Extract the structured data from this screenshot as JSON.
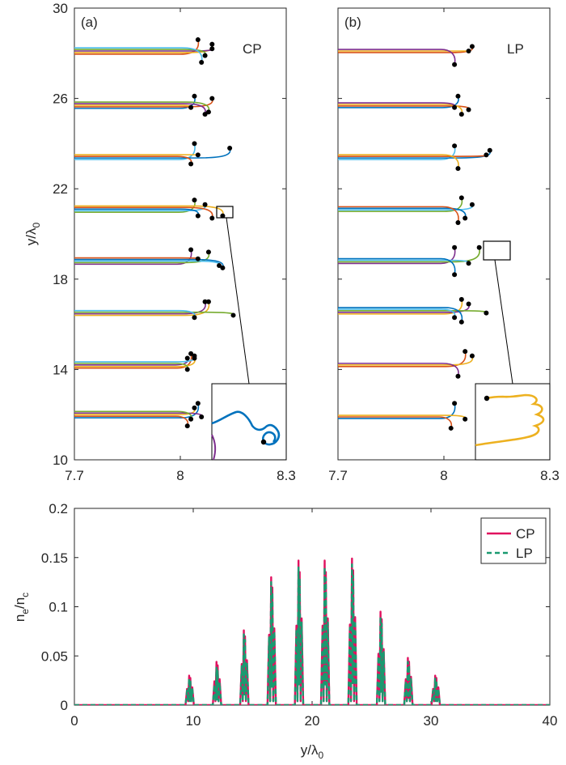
{
  "chart_data": [
    {
      "panel_label": "(a)",
      "type": "line",
      "annotation": "CP",
      "ylabel": "y/λ0",
      "xlim": [
        7.7,
        8.3
      ],
      "ylim": [
        10,
        30
      ],
      "xticks": [
        "7.7",
        "8",
        "8.3"
      ],
      "yticks": [
        "10",
        "14",
        "18",
        "22",
        "26",
        "30"
      ],
      "series_colors": [
        "#0072BD",
        "#D95319",
        "#EDB120",
        "#7E2F8E",
        "#77AC30",
        "#4DBEEE"
      ],
      "trajectory_groups": [
        {
          "y": 12.0,
          "ends": [
            [
              8.05,
              12.5
            ],
            [
              8.02,
              11.5
            ],
            [
              8.04,
              12.3
            ],
            [
              8.06,
              11.9
            ],
            [
              8.03,
              11.8
            ]
          ]
        },
        {
          "y": 14.2,
          "ends": [
            [
              8.03,
              14.7
            ],
            [
              8.04,
              14.5
            ],
            [
              8.02,
              14.5
            ],
            [
              8.02,
              14.0
            ],
            [
              8.04,
              14.6
            ]
          ]
        },
        {
          "y": 16.5,
          "ends": [
            [
              8.08,
              17.0
            ],
            [
              8.07,
              17.0
            ],
            [
              8.15,
              16.4
            ],
            [
              8.04,
              16.3
            ]
          ]
        },
        {
          "y": 18.8,
          "ends": [
            [
              8.03,
              19.3
            ],
            [
              8.08,
              19.2
            ],
            [
              8.11,
              18.6
            ],
            [
              8.12,
              18.5
            ],
            [
              8.05,
              18.9
            ]
          ]
        },
        {
          "y": 21.1,
          "ends": [
            [
              8.04,
              21.5
            ],
            [
              8.07,
              21.3
            ],
            [
              8.05,
              20.8
            ],
            [
              8.09,
              20.7
            ],
            [
              8.12,
              20.8
            ]
          ]
        },
        {
          "y": 23.4,
          "ends": [
            [
              8.04,
              24.0
            ],
            [
              8.14,
              23.8
            ],
            [
              8.03,
              23.1
            ],
            [
              8.05,
              23.5
            ]
          ]
        },
        {
          "y": 25.7,
          "ends": [
            [
              8.04,
              26.1
            ],
            [
              8.09,
              26.0
            ],
            [
              8.03,
              25.6
            ],
            [
              8.07,
              25.3
            ],
            [
              8.08,
              25.4
            ]
          ]
        },
        {
          "y": 28.1,
          "ends": [
            [
              8.05,
              28.6
            ],
            [
              8.09,
              28.4
            ],
            [
              8.09,
              28.2
            ],
            [
              8.07,
              27.9
            ],
            [
              8.06,
              27.6
            ]
          ]
        }
      ]
    },
    {
      "panel_label": "(b)",
      "type": "line",
      "annotation": "LP",
      "xlim": [
        7.7,
        8.3
      ],
      "ylim": [
        10,
        30
      ],
      "xticks": [
        "7.7",
        "8",
        "8.3"
      ],
      "series_colors": [
        "#0072BD",
        "#D95319",
        "#EDB120",
        "#7E2F8E",
        "#77AC30",
        "#4DBEEE"
      ],
      "trajectory_groups": [
        {
          "y": 11.9,
          "ends": [
            [
              8.03,
              12.5
            ],
            [
              8.02,
              11.4
            ],
            [
              8.06,
              11.8
            ]
          ]
        },
        {
          "y": 14.2,
          "ends": [
            [
              8.06,
              14.8
            ],
            [
              8.08,
              14.6
            ],
            [
              8.04,
              13.7
            ]
          ]
        },
        {
          "y": 16.6,
          "ends": [
            [
              8.05,
              17.1
            ],
            [
              8.07,
              16.9
            ],
            [
              8.12,
              16.5
            ],
            [
              8.03,
              16.3
            ],
            [
              8.05,
              16.1
            ]
          ]
        },
        {
          "y": 18.8,
          "ends": [
            [
              8.03,
              19.4
            ],
            [
              8.1,
              19.4
            ],
            [
              8.07,
              18.7
            ],
            [
              8.03,
              18.2
            ]
          ]
        },
        {
          "y": 21.1,
          "ends": [
            [
              8.05,
              21.6
            ],
            [
              8.08,
              21.3
            ],
            [
              8.06,
              20.7
            ],
            [
              8.04,
              20.5
            ]
          ]
        },
        {
          "y": 23.4,
          "ends": [
            [
              8.03,
              23.9
            ],
            [
              8.13,
              23.7
            ],
            [
              8.12,
              23.5
            ],
            [
              8.04,
              22.9
            ]
          ]
        },
        {
          "y": 25.7,
          "ends": [
            [
              8.04,
              26.1
            ],
            [
              8.07,
              25.5
            ],
            [
              8.05,
              25.3
            ],
            [
              8.03,
              25.6
            ]
          ]
        },
        {
          "y": 28.1,
          "ends": [
            [
              8.08,
              28.3
            ],
            [
              8.07,
              28.1
            ],
            [
              8.03,
              27.5
            ]
          ]
        }
      ]
    },
    {
      "type": "line",
      "xlabel": "y/λ0",
      "ylabel": "ne/nc",
      "xlim": [
        0,
        40
      ],
      "ylim": [
        0,
        0.2
      ],
      "xticks": [
        "0",
        "10",
        "20",
        "30",
        "40"
      ],
      "yticks": [
        "0",
        "0.05",
        "0.1",
        "0.15",
        "0.2"
      ],
      "legend_position": "top-right",
      "series": [
        {
          "name": "CP",
          "color": "#E0115F",
          "style": "solid",
          "peaks": [
            [
              9.7,
              0.03
            ],
            [
              12.0,
              0.044
            ],
            [
              14.3,
              0.076
            ],
            [
              16.6,
              0.13
            ],
            [
              18.9,
              0.147
            ],
            [
              21.1,
              0.147
            ],
            [
              23.4,
              0.149
            ],
            [
              25.8,
              0.095
            ],
            [
              28.1,
              0.048
            ],
            [
              30.4,
              0.03
            ]
          ]
        },
        {
          "name": "LP",
          "color": "#1A9A70",
          "style": "dashed",
          "peaks": [
            [
              9.7,
              0.027
            ],
            [
              12.0,
              0.038
            ],
            [
              14.3,
              0.072
            ],
            [
              16.6,
              0.125
            ],
            [
              18.9,
              0.14
            ],
            [
              21.1,
              0.14
            ],
            [
              23.4,
              0.143
            ],
            [
              25.8,
              0.09
            ],
            [
              28.1,
              0.044
            ],
            [
              30.4,
              0.027
            ]
          ]
        }
      ]
    }
  ]
}
